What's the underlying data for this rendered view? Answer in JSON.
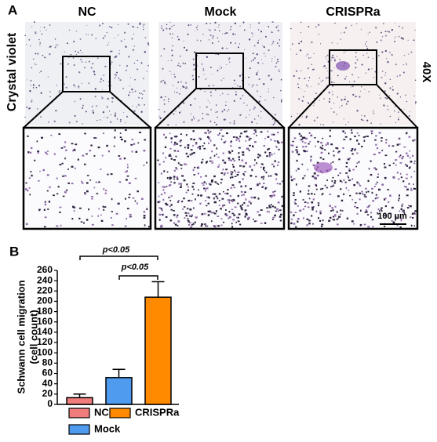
{
  "panel_a": {
    "label": "A",
    "columns": [
      "NC",
      "Mock",
      "CRISPRa"
    ],
    "row_label": "Crystal violet",
    "magnification": "40X",
    "scale_bar": "100 µm"
  },
  "chart_data": {
    "type": "bar",
    "panel_label": "B",
    "ylabel": [
      "Schwann cell migration",
      "(cell count)"
    ],
    "categories": [
      "NC",
      "Mock",
      "CRISPRa"
    ],
    "values": [
      13,
      52,
      208
    ],
    "errors": [
      7,
      16,
      30
    ],
    "colors": [
      "#f07c7c",
      "#4f9bef",
      "#ff8a00"
    ],
    "ylim": [
      0,
      260
    ],
    "yticks": [
      0,
      20,
      40,
      60,
      80,
      100,
      120,
      140,
      160,
      180,
      200,
      220,
      240,
      260
    ],
    "annotations": [
      "p<0.05",
      "p<0.05"
    ]
  }
}
